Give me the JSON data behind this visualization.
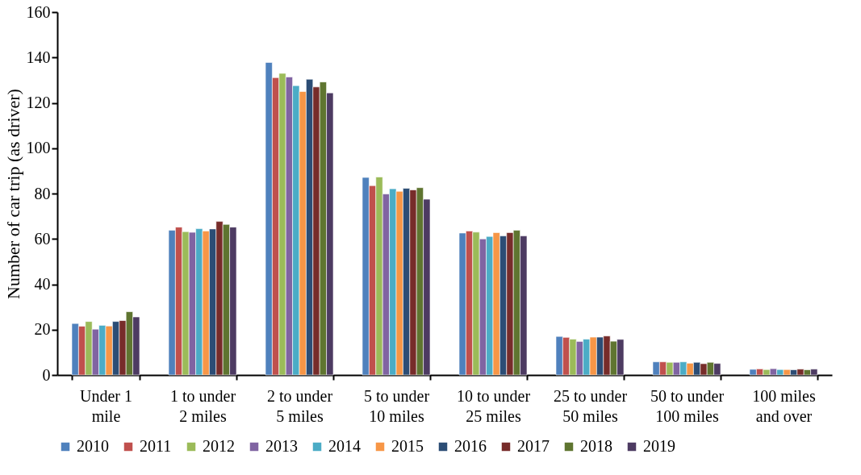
{
  "chart_data": {
    "type": "bar",
    "ylabel": "Number of car trip (as driver)",
    "categories": [
      "Under 1 mile",
      "1 to under 2 miles",
      "2 to under 5 miles",
      "5 to under 10 miles",
      "10 to under 25 miles",
      "25 to under 50 miles",
      "50 to under 100 miles",
      "100 miles and over"
    ],
    "series": [
      {
        "name": "2010",
        "color": "#4f81bd",
        "values": [
          22.7,
          63.8,
          137.8,
          87.1,
          62.6,
          17.0,
          5.8,
          2.5
        ]
      },
      {
        "name": "2011",
        "color": "#c0504d",
        "values": [
          21.5,
          65.2,
          131.1,
          83.5,
          63.5,
          16.6,
          5.8,
          2.7
        ]
      },
      {
        "name": "2012",
        "color": "#9bbb59",
        "values": [
          23.6,
          63.2,
          133.0,
          87.3,
          63.0,
          15.8,
          5.6,
          2.4
        ]
      },
      {
        "name": "2013",
        "color": "#8064a2",
        "values": [
          20.2,
          62.9,
          131.4,
          79.8,
          60.0,
          14.8,
          5.6,
          2.8
        ]
      },
      {
        "name": "2014",
        "color": "#4bacc6",
        "values": [
          21.9,
          64.5,
          127.6,
          82.1,
          61.1,
          15.8,
          5.8,
          2.4
        ]
      },
      {
        "name": "2015",
        "color": "#f79646",
        "values": [
          21.6,
          63.5,
          125.0,
          81.0,
          62.8,
          16.7,
          5.2,
          2.4
        ]
      },
      {
        "name": "2016",
        "color": "#2c4d75",
        "values": [
          23.6,
          64.4,
          130.4,
          82.3,
          61.3,
          16.7,
          5.6,
          2.3
        ]
      },
      {
        "name": "2017",
        "color": "#772c2a",
        "values": [
          24.0,
          67.7,
          127.0,
          81.6,
          62.8,
          17.2,
          5.0,
          2.6
        ]
      },
      {
        "name": "2018",
        "color": "#5f7530",
        "values": [
          27.9,
          66.4,
          129.2,
          82.6,
          63.8,
          14.9,
          5.6,
          2.3
        ]
      },
      {
        "name": "2019",
        "color": "#4d3b62",
        "values": [
          25.6,
          65.2,
          124.4,
          77.5,
          61.3,
          15.7,
          5.1,
          2.6
        ]
      }
    ],
    "ylim": [
      0,
      160
    ],
    "yticks": [
      0,
      20,
      40,
      60,
      80,
      100,
      120,
      140,
      160
    ],
    "grid": false,
    "legend": "bottom"
  }
}
